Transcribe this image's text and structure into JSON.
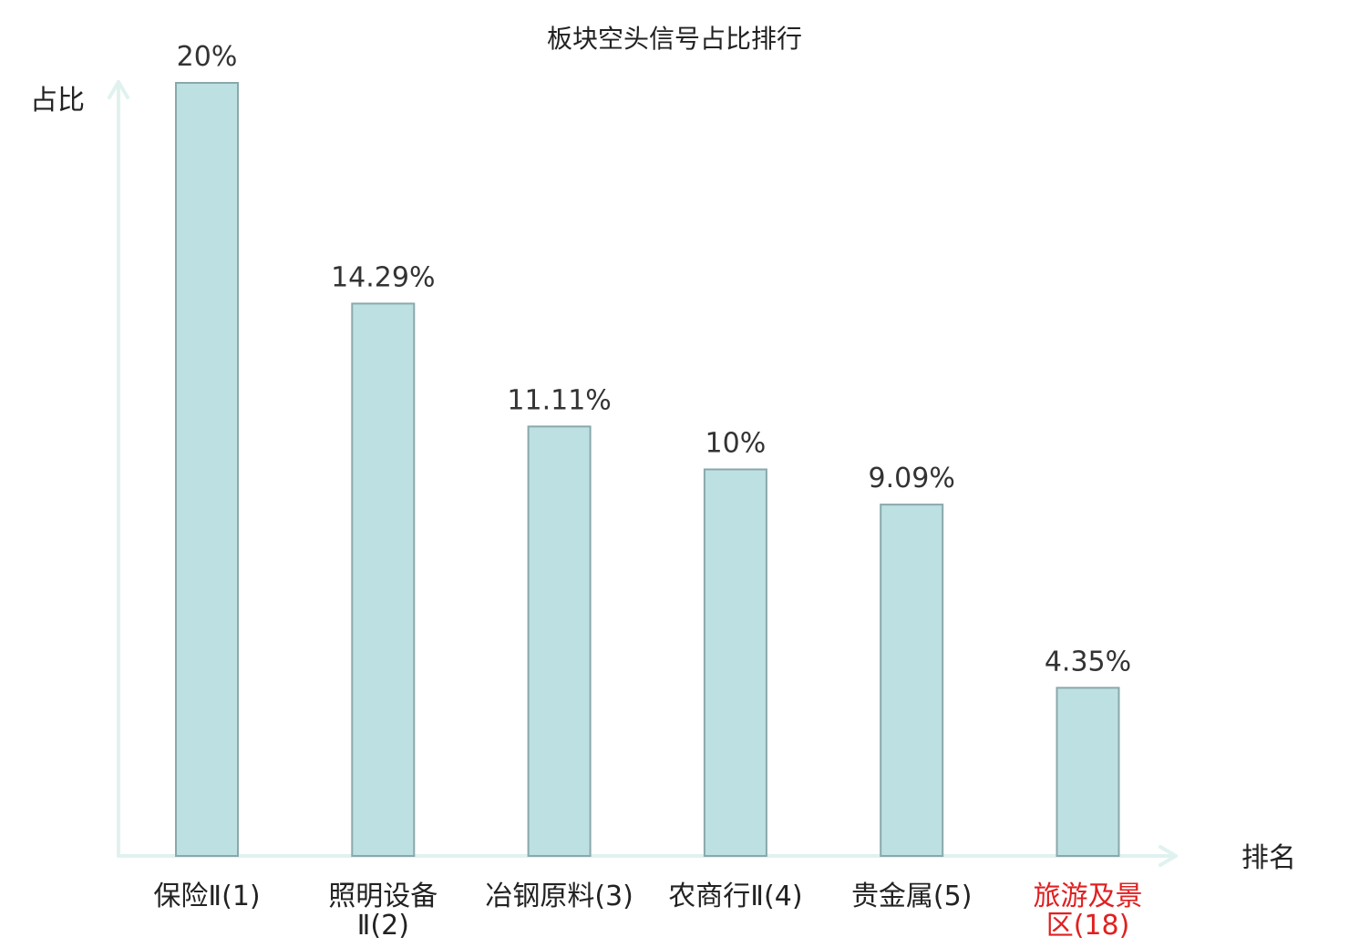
{
  "chart_data": {
    "type": "bar",
    "title": "板块空头信号占比排行",
    "ylabel": "占比",
    "xlabel": "排名",
    "categories": [
      [
        "保险Ⅱ(1)"
      ],
      [
        "照明设备",
        "Ⅱ(2)"
      ],
      [
        "冶钢原料(3)"
      ],
      [
        "农商行Ⅱ(4)"
      ],
      [
        "贵金属(5)"
      ],
      [
        "旅游及景",
        "区(18)"
      ]
    ],
    "values": [
      20,
      14.29,
      11.11,
      10,
      9.09,
      4.35
    ],
    "value_labels": [
      "20%",
      "14.29%",
      "11.11%",
      "10%",
      "9.09%",
      "4.35%"
    ],
    "highlight_index": 5,
    "ylim": [
      0,
      20
    ],
    "grid": false,
    "colors": {
      "bar_fill": "#bde0e3",
      "bar_stroke": "#8aa8ab",
      "axis": "#e0f2ef",
      "highlight_text": "#e02020"
    }
  }
}
